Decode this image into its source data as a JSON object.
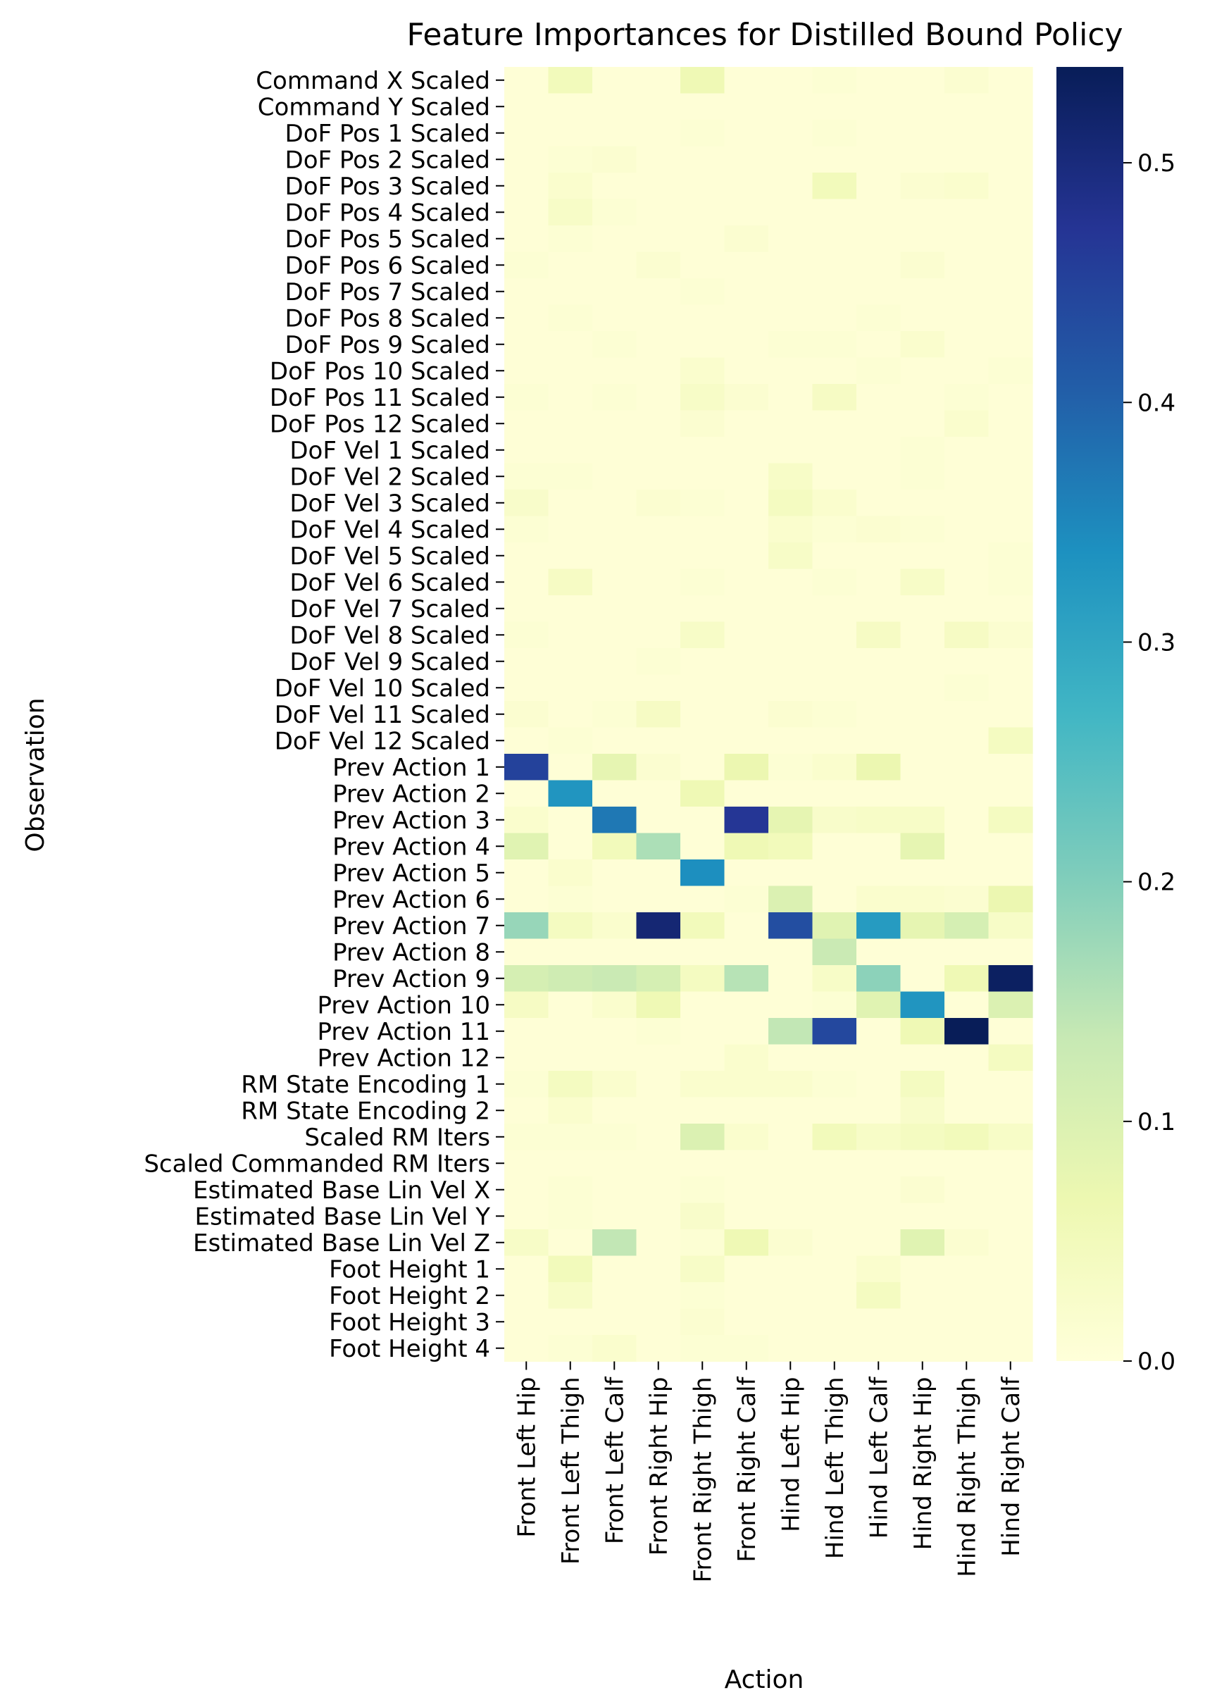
{
  "chart_data": {
    "type": "heatmap",
    "title": "Feature Importances for Distilled Bound Policy",
    "xlabel": "Action",
    "ylabel": "Observation",
    "colormap": "YlGnBu",
    "color_range": [
      0.0,
      0.54
    ],
    "colorbar_ticks": [
      "0.0",
      "0.1",
      "0.2",
      "0.3",
      "0.4",
      "0.5"
    ],
    "columns": [
      "Front Left Hip",
      "Front Left Thigh",
      "Front Left Calf",
      "Front Right Hip",
      "Front Right Thigh",
      "Front Right Calf",
      "Hind Left Hip",
      "Hind Left Thigh",
      "Hind Left Calf",
      "Hind Right Hip",
      "Hind Right Thigh",
      "Hind Right Calf"
    ],
    "rows": [
      "Command X Scaled",
      "Command Y Scaled",
      "DoF Pos 1 Scaled",
      "DoF Pos 2 Scaled",
      "DoF Pos 3 Scaled",
      "DoF Pos 4 Scaled",
      "DoF Pos 5 Scaled",
      "DoF Pos 6 Scaled",
      "DoF Pos 7 Scaled",
      "DoF Pos 8 Scaled",
      "DoF Pos 9 Scaled",
      "DoF Pos 10 Scaled",
      "DoF Pos 11 Scaled",
      "DoF Pos 12 Scaled",
      "DoF Vel 1 Scaled",
      "DoF Vel 2 Scaled",
      "DoF Vel 3 Scaled",
      "DoF Vel 4 Scaled",
      "DoF Vel 5 Scaled",
      "DoF Vel 6 Scaled",
      "DoF Vel 7 Scaled",
      "DoF Vel 8 Scaled",
      "DoF Vel 9 Scaled",
      "DoF Vel 10 Scaled",
      "DoF Vel 11 Scaled",
      "DoF Vel 12 Scaled",
      "Prev Action 1",
      "Prev Action 2",
      "Prev Action 3",
      "Prev Action 4",
      "Prev Action 5",
      "Prev Action 6",
      "Prev Action 7",
      "Prev Action 8",
      "Prev Action 9",
      "Prev Action 10",
      "Prev Action 11",
      "Prev Action 12",
      "RM State Encoding 1",
      "RM State Encoding 2",
      "Scaled RM Iters",
      "Scaled Commanded RM Iters",
      "Estimated Base Lin Vel X",
      "Estimated Base Lin Vel Y",
      "Estimated Base Lin Vel Z",
      "Foot Height 1",
      "Foot Height 2",
      "Foot Height 3",
      "Foot Height 4"
    ],
    "values": [
      [
        0.005,
        0.05,
        0.005,
        0.005,
        0.06,
        0.005,
        0.005,
        0.01,
        0.005,
        0.005,
        0.015,
        0.005
      ],
      [
        0.005,
        0.005,
        0.005,
        0.005,
        0.005,
        0.005,
        0.005,
        0.005,
        0.005,
        0.005,
        0.005,
        0.005
      ],
      [
        0.005,
        0.005,
        0.005,
        0.005,
        0.01,
        0.005,
        0.005,
        0.01,
        0.005,
        0.005,
        0.005,
        0.005
      ],
      [
        0.005,
        0.01,
        0.015,
        0.005,
        0.005,
        0.005,
        0.005,
        0.005,
        0.005,
        0.005,
        0.005,
        0.005
      ],
      [
        0.005,
        0.02,
        0.005,
        0.005,
        0.005,
        0.005,
        0.005,
        0.05,
        0.005,
        0.015,
        0.02,
        0.005
      ],
      [
        0.005,
        0.03,
        0.01,
        0.005,
        0.005,
        0.005,
        0.005,
        0.005,
        0.005,
        0.005,
        0.005,
        0.005
      ],
      [
        0.005,
        0.01,
        0.005,
        0.005,
        0.005,
        0.015,
        0.005,
        0.005,
        0.005,
        0.005,
        0.005,
        0.005
      ],
      [
        0.01,
        0.005,
        0.005,
        0.015,
        0.005,
        0.005,
        0.005,
        0.005,
        0.005,
        0.015,
        0.005,
        0.005
      ],
      [
        0.005,
        0.005,
        0.005,
        0.005,
        0.01,
        0.005,
        0.005,
        0.005,
        0.005,
        0.005,
        0.005,
        0.005
      ],
      [
        0.005,
        0.01,
        0.005,
        0.005,
        0.005,
        0.005,
        0.005,
        0.005,
        0.01,
        0.005,
        0.005,
        0.005
      ],
      [
        0.005,
        0.005,
        0.01,
        0.005,
        0.005,
        0.005,
        0.01,
        0.01,
        0.005,
        0.02,
        0.005,
        0.005
      ],
      [
        0.005,
        0.005,
        0.005,
        0.005,
        0.02,
        0.005,
        0.005,
        0.005,
        0.01,
        0.005,
        0.005,
        0.01
      ],
      [
        0.01,
        0.005,
        0.01,
        0.005,
        0.03,
        0.015,
        0.005,
        0.035,
        0.005,
        0.005,
        0.01,
        0.005
      ],
      [
        0.005,
        0.005,
        0.005,
        0.005,
        0.015,
        0.005,
        0.005,
        0.005,
        0.005,
        0.005,
        0.02,
        0.005
      ],
      [
        0.005,
        0.005,
        0.005,
        0.005,
        0.005,
        0.005,
        0.005,
        0.005,
        0.005,
        0.01,
        0.005,
        0.005
      ],
      [
        0.01,
        0.01,
        0.005,
        0.005,
        0.005,
        0.005,
        0.03,
        0.005,
        0.005,
        0.01,
        0.005,
        0.005
      ],
      [
        0.025,
        0.005,
        0.005,
        0.015,
        0.01,
        0.005,
        0.04,
        0.02,
        0.005,
        0.005,
        0.005,
        0.005
      ],
      [
        0.01,
        0.005,
        0.005,
        0.005,
        0.005,
        0.005,
        0.02,
        0.01,
        0.015,
        0.01,
        0.005,
        0.005
      ],
      [
        0.005,
        0.005,
        0.005,
        0.005,
        0.005,
        0.005,
        0.03,
        0.005,
        0.005,
        0.005,
        0.005,
        0.01
      ],
      [
        0.005,
        0.035,
        0.005,
        0.005,
        0.01,
        0.005,
        0.005,
        0.01,
        0.005,
        0.03,
        0.005,
        0.01
      ],
      [
        0.005,
        0.005,
        0.005,
        0.005,
        0.005,
        0.005,
        0.005,
        0.005,
        0.005,
        0.005,
        0.005,
        0.005
      ],
      [
        0.01,
        0.005,
        0.005,
        0.005,
        0.03,
        0.005,
        0.005,
        0.005,
        0.035,
        0.005,
        0.035,
        0.015
      ],
      [
        0.005,
        0.005,
        0.005,
        0.01,
        0.005,
        0.005,
        0.005,
        0.005,
        0.005,
        0.005,
        0.005,
        0.005
      ],
      [
        0.005,
        0.005,
        0.005,
        0.005,
        0.005,
        0.005,
        0.005,
        0.005,
        0.005,
        0.005,
        0.01,
        0.005
      ],
      [
        0.015,
        0.005,
        0.01,
        0.035,
        0.005,
        0.005,
        0.015,
        0.01,
        0.005,
        0.005,
        0.005,
        0.005
      ],
      [
        0.005,
        0.01,
        0.005,
        0.005,
        0.005,
        0.005,
        0.005,
        0.005,
        0.005,
        0.005,
        0.005,
        0.04
      ],
      [
        0.45,
        0.005,
        0.08,
        0.015,
        0.005,
        0.07,
        0.01,
        0.02,
        0.07,
        0.005,
        0.005,
        0.005
      ],
      [
        0.005,
        0.33,
        0.005,
        0.005,
        0.06,
        0.005,
        0.005,
        0.005,
        0.005,
        0.005,
        0.005,
        0.005
      ],
      [
        0.02,
        0.005,
        0.37,
        0.005,
        0.005,
        0.47,
        0.08,
        0.025,
        0.03,
        0.03,
        0.005,
        0.04
      ],
      [
        0.09,
        0.005,
        0.05,
        0.16,
        0.005,
        0.06,
        0.05,
        0.005,
        0.005,
        0.08,
        0.005,
        0.005
      ],
      [
        0.005,
        0.02,
        0.005,
        0.005,
        0.34,
        0.005,
        0.005,
        0.005,
        0.005,
        0.005,
        0.005,
        0.005
      ],
      [
        0.005,
        0.01,
        0.005,
        0.005,
        0.005,
        0.01,
        0.1,
        0.005,
        0.02,
        0.02,
        0.015,
        0.07
      ],
      [
        0.18,
        0.04,
        0.02,
        0.51,
        0.05,
        0.005,
        0.43,
        0.09,
        0.32,
        0.08,
        0.11,
        0.03
      ],
      [
        0.005,
        0.005,
        0.005,
        0.005,
        0.005,
        0.005,
        0.005,
        0.13,
        0.005,
        0.005,
        0.005,
        0.005
      ],
      [
        0.11,
        0.12,
        0.13,
        0.11,
        0.04,
        0.15,
        0.005,
        0.03,
        0.19,
        0.005,
        0.06,
        0.53
      ],
      [
        0.035,
        0.005,
        0.02,
        0.06,
        0.005,
        0.005,
        0.005,
        0.01,
        0.09,
        0.33,
        0.005,
        0.1
      ],
      [
        0.005,
        0.005,
        0.005,
        0.01,
        0.005,
        0.005,
        0.14,
        0.44,
        0.005,
        0.06,
        0.54,
        0.005
      ],
      [
        0.005,
        0.005,
        0.005,
        0.005,
        0.005,
        0.02,
        0.005,
        0.005,
        0.005,
        0.005,
        0.005,
        0.04
      ],
      [
        0.01,
        0.04,
        0.02,
        0.005,
        0.02,
        0.02,
        0.02,
        0.01,
        0.005,
        0.04,
        0.005,
        0.005
      ],
      [
        0.005,
        0.02,
        0.005,
        0.005,
        0.005,
        0.005,
        0.005,
        0.005,
        0.005,
        0.025,
        0.005,
        0.005
      ],
      [
        0.01,
        0.01,
        0.01,
        0.005,
        0.1,
        0.02,
        0.005,
        0.05,
        0.03,
        0.04,
        0.05,
        0.03
      ],
      [
        0.005,
        0.005,
        0.005,
        0.005,
        0.005,
        0.005,
        0.005,
        0.005,
        0.005,
        0.005,
        0.005,
        0.005
      ],
      [
        0.005,
        0.01,
        0.005,
        0.005,
        0.01,
        0.005,
        0.005,
        0.005,
        0.005,
        0.015,
        0.005,
        0.005
      ],
      [
        0.005,
        0.01,
        0.005,
        0.005,
        0.025,
        0.005,
        0.005,
        0.005,
        0.005,
        0.005,
        0.005,
        0.005
      ],
      [
        0.03,
        0.005,
        0.14,
        0.005,
        0.01,
        0.06,
        0.015,
        0.005,
        0.005,
        0.09,
        0.015,
        0.005
      ],
      [
        0.005,
        0.05,
        0.005,
        0.005,
        0.03,
        0.005,
        0.005,
        0.005,
        0.02,
        0.005,
        0.005,
        0.005
      ],
      [
        0.005,
        0.03,
        0.005,
        0.005,
        0.01,
        0.005,
        0.005,
        0.005,
        0.04,
        0.005,
        0.005,
        0.005
      ],
      [
        0.005,
        0.005,
        0.005,
        0.005,
        0.015,
        0.005,
        0.005,
        0.005,
        0.005,
        0.005,
        0.005,
        0.005
      ],
      [
        0.005,
        0.01,
        0.02,
        0.005,
        0.01,
        0.01,
        0.005,
        0.005,
        0.005,
        0.005,
        0.005,
        0.005
      ]
    ]
  }
}
